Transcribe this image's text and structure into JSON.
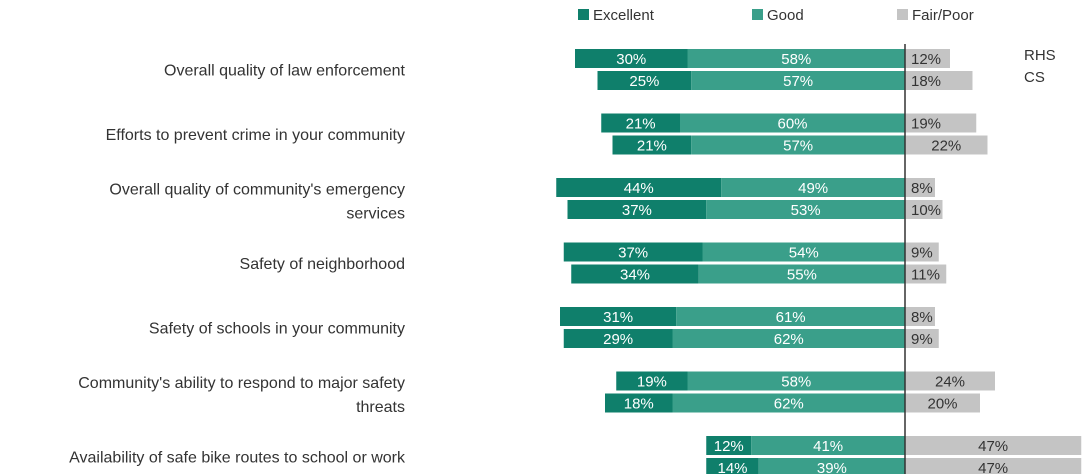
{
  "chart_data": {
    "type": "bar",
    "stacked": true,
    "orientation": "horizontal",
    "diverging": true,
    "title": "",
    "legend": {
      "position": "top",
      "entries": [
        "Excellent",
        "Good",
        "Fair/Poor"
      ]
    },
    "colors": {
      "Excellent": "#0f7f6b",
      "Good": "#3a9f8a",
      "Fair/Poor": "#c4c4c4",
      "divider": "#333333",
      "text": "#333333"
    },
    "series_labels": [
      "RHS",
      "CS"
    ],
    "categories": [
      {
        "label": [
          "Overall quality of law enforcement"
        ],
        "rows": [
          {
            "excellent": 30,
            "good": 58,
            "fair_poor": 12
          },
          {
            "excellent": 25,
            "good": 57,
            "fair_poor": 18
          }
        ]
      },
      {
        "label": [
          "Efforts to prevent crime in your community"
        ],
        "rows": [
          {
            "excellent": 21,
            "good": 60,
            "fair_poor": 19
          },
          {
            "excellent": 21,
            "good": 57,
            "fair_poor": 22
          }
        ]
      },
      {
        "label": [
          "Overall quality of community's emergency",
          "services"
        ],
        "rows": [
          {
            "excellent": 44,
            "good": 49,
            "fair_poor": 8
          },
          {
            "excellent": 37,
            "good": 53,
            "fair_poor": 10
          }
        ]
      },
      {
        "label": [
          "Safety of neighborhood"
        ],
        "rows": [
          {
            "excellent": 37,
            "good": 54,
            "fair_poor": 9
          },
          {
            "excellent": 34,
            "good": 55,
            "fair_poor": 11
          }
        ]
      },
      {
        "label": [
          "Safety of schools in your community"
        ],
        "rows": [
          {
            "excellent": 31,
            "good": 61,
            "fair_poor": 8
          },
          {
            "excellent": 29,
            "good": 62,
            "fair_poor": 9
          }
        ]
      },
      {
        "label": [
          "Community's ability to respond to major safety",
          "threats"
        ],
        "rows": [
          {
            "excellent": 19,
            "good": 58,
            "fair_poor": 24
          },
          {
            "excellent": 18,
            "good": 62,
            "fair_poor": 20
          }
        ]
      },
      {
        "label": [
          "Availability of safe bike routes to school or work"
        ],
        "rows": [
          {
            "excellent": 12,
            "good": 41,
            "fair_poor": 47
          },
          {
            "excellent": 14,
            "good": 39,
            "fair_poor": 47
          }
        ]
      }
    ]
  }
}
